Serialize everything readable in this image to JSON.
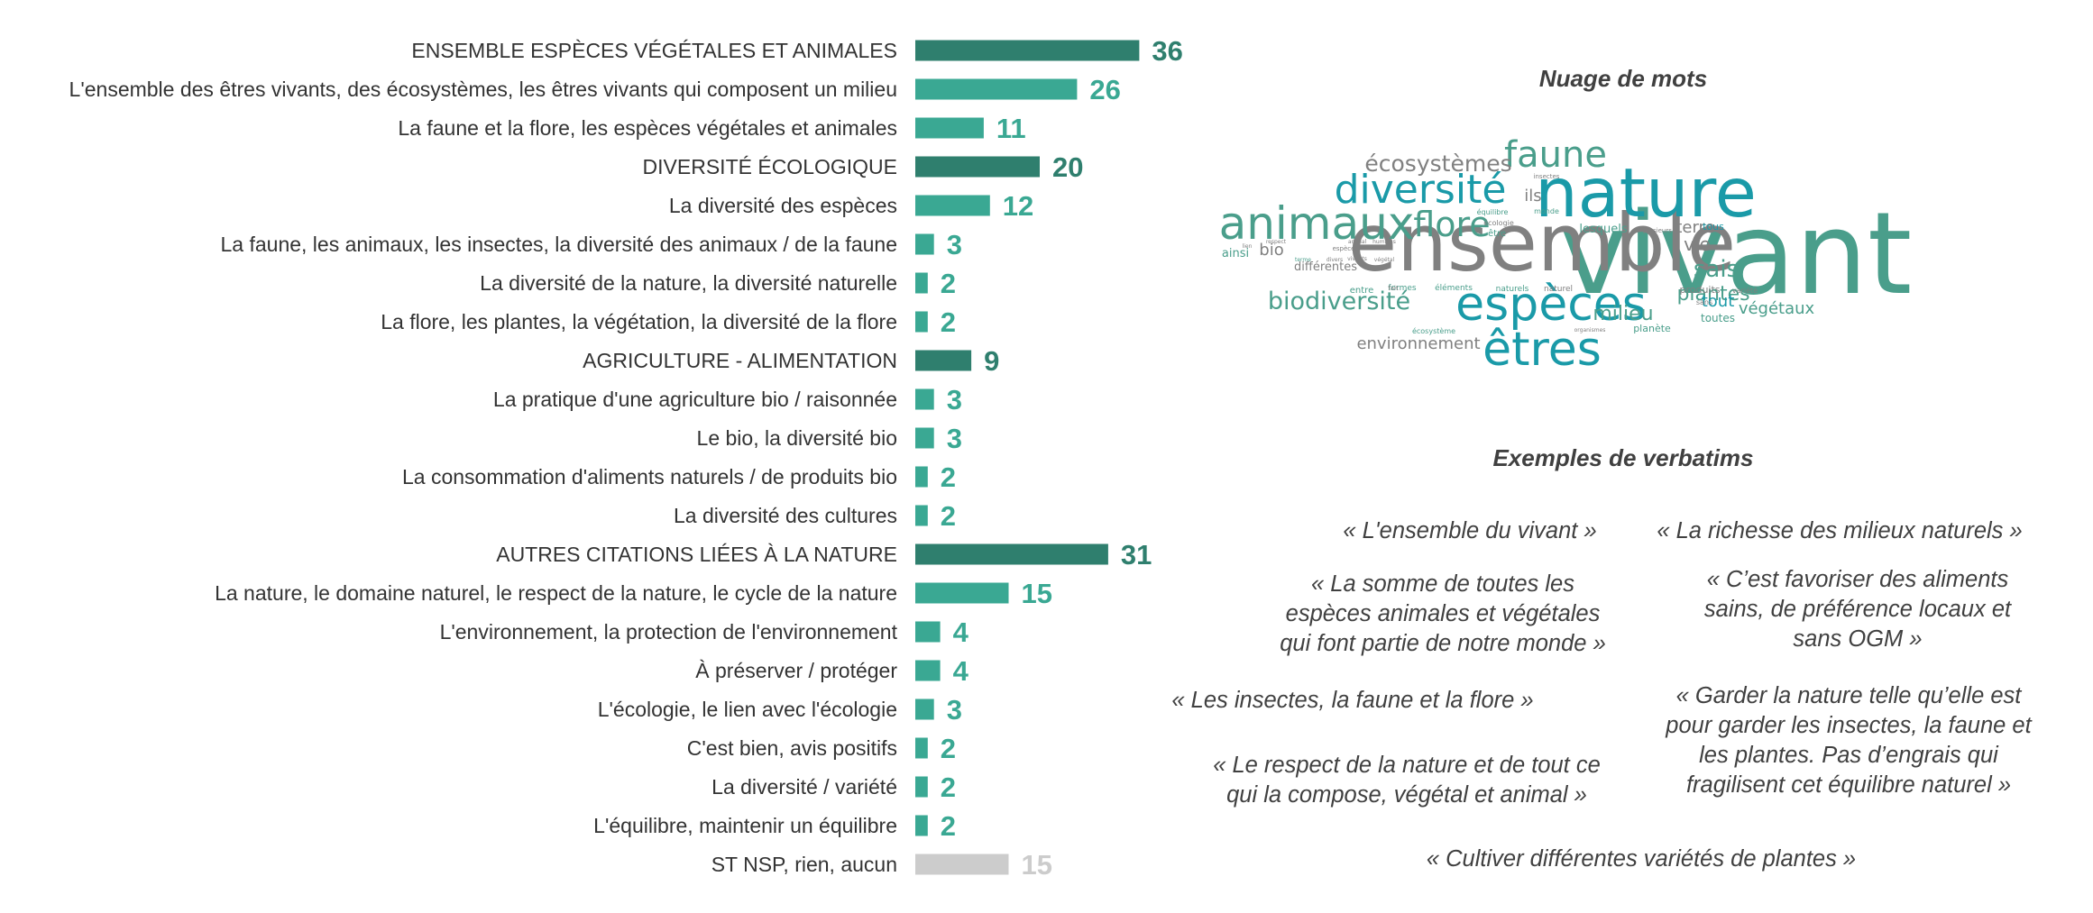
{
  "chart_data": {
    "type": "bar",
    "orientation": "horizontal",
    "categories": [
      "ENSEMBLE ESPÈCES VÉGÉTALES ET ANIMALES",
      "L'ensemble des êtres vivants, des écosystèmes, les êtres vivants qui composent un milieu",
      "La faune et la flore, les espèces végétales et animales",
      "DIVERSITÉ ÉCOLOGIQUE",
      "La diversité des espèces",
      "La faune, les animaux, les insectes, la diversité des animaux / de la faune",
      "La diversité de la nature, la diversité naturelle",
      "La flore, les plantes, la végétation, la diversité de la flore",
      "AGRICULTURE - ALIMENTATION",
      "La pratique d'une agriculture bio / raisonnée",
      "Le bio, la diversité bio",
      "La consommation d'aliments naturels / de produits bio",
      "La diversité des cultures",
      "AUTRES CITATIONS LIÉES À LA NATURE",
      "La nature, le domaine naturel, le respect de la nature, le cycle de la nature",
      "L'environnement, la protection de l'environnement",
      "À préserver / protéger",
      "L'écologie, le lien avec l'écologie",
      "C'est bien, avis positifs",
      "La diversité / variété",
      "L'équilibre, maintenir un équilibre",
      "ST NSP, rien, aucun"
    ],
    "values": [
      36,
      26,
      11,
      20,
      12,
      3,
      2,
      2,
      9,
      3,
      3,
      2,
      2,
      31,
      15,
      4,
      4,
      3,
      2,
      2,
      2,
      15
    ],
    "kinds": [
      "total",
      "item",
      "item",
      "total",
      "item",
      "item",
      "item",
      "item",
      "total",
      "item",
      "item",
      "item",
      "item",
      "total",
      "item",
      "item",
      "item",
      "item",
      "item",
      "item",
      "item",
      "nsp"
    ],
    "value_labels": [
      "36",
      "26",
      "11",
      "20",
      "12",
      "3",
      "2",
      "2",
      "9",
      "3",
      "3",
      "2",
      "2",
      "31",
      "15",
      "4",
      "4",
      "3",
      "2",
      "2",
      "2",
      "15"
    ],
    "colors": {
      "total": "#2f7f6e",
      "item": "#3aa893",
      "nsp": "#cccccc"
    },
    "xlim": [
      0,
      40
    ]
  },
  "wordcloud": {
    "title": "Nuage de mots",
    "words": [
      {
        "text": "vivant",
        "color": "#4a9e8b"
      },
      {
        "text": "ensemble",
        "color": "#808080"
      },
      {
        "text": "nature",
        "color": "#1a9aa8"
      },
      {
        "text": "animaux",
        "color": "#4a9e8b"
      },
      {
        "text": "espèces",
        "color": "#1a9aa8"
      },
      {
        "text": "êtres",
        "color": "#1a9aa8"
      },
      {
        "text": "diversité",
        "color": "#1a9aa8"
      },
      {
        "text": "faune",
        "color": "#4a9e8b"
      },
      {
        "text": "flore",
        "color": "#4a9e8b"
      },
      {
        "text": "écosystèmes",
        "color": "#808080"
      },
      {
        "text": "biodiversité",
        "color": "#4a9e8b"
      },
      {
        "text": "plantes",
        "color": "#4a9e8b"
      },
      {
        "text": "milieu",
        "color": "#4a9e8b"
      },
      {
        "text": "environnement",
        "color": "#808080"
      },
      {
        "text": "sais",
        "color": "#4a9e8b"
      },
      {
        "text": "vie",
        "color": "#808080"
      },
      {
        "text": "terre",
        "color": "#808080"
      },
      {
        "text": "tout",
        "color": "#1a9aa8"
      },
      {
        "text": "végétaux",
        "color": "#4a9e8b"
      },
      {
        "text": "ils",
        "color": "#808080"
      },
      {
        "text": "lesquels",
        "color": "#4a9e8b"
      },
      {
        "text": "différentes",
        "color": "#808080"
      },
      {
        "text": "toutes",
        "color": "#4a9e8b"
      },
      {
        "text": "ainsi",
        "color": "#4a9e8b"
      },
      {
        "text": "bio",
        "color": "#808080"
      },
      {
        "text": "planète",
        "color": "#4a9e8b"
      },
      {
        "text": "produits",
        "color": "#808080"
      },
      {
        "text": "tous",
        "color": "#1a9aa8"
      },
      {
        "text": "entre",
        "color": "#4a9e8b"
      },
      {
        "text": "formes",
        "color": "#4a9e8b"
      },
      {
        "text": "éléments",
        "color": "#4a9e8b"
      },
      {
        "text": "naturels",
        "color": "#4a9e8b"
      },
      {
        "text": "naturel",
        "color": "#808080"
      },
      {
        "text": "écosystème",
        "color": "#4a9e8b"
      },
      {
        "text": "être",
        "color": "#4a9e8b"
      },
      {
        "text": "monde",
        "color": "#4a9e8b"
      },
      {
        "text": "équilibre",
        "color": "#4a9e8b"
      },
      {
        "text": "écologie",
        "color": "#808080"
      },
      {
        "text": "insectes",
        "color": "#808080"
      },
      {
        "text": "variété",
        "color": "#808080"
      },
      {
        "text": "sans",
        "color": "#808080"
      },
      {
        "text": "plusieurs",
        "color": "#808080"
      },
      {
        "text": "espèce",
        "color": "#808080"
      },
      {
        "text": "fait",
        "color": "#808080"
      },
      {
        "text": "organismes",
        "color": "#808080"
      },
      {
        "text": "respect",
        "color": "#808080"
      },
      {
        "text": "lien",
        "color": "#808080"
      },
      {
        "text": "divers",
        "color": "#808080"
      },
      {
        "text": "terme",
        "color": "#4a9e8b"
      },
      {
        "text": "vivants",
        "color": "#808080"
      },
      {
        "text": "humains",
        "color": "#808080"
      },
      {
        "text": "végétal",
        "color": "#808080"
      },
      {
        "text": "animal",
        "color": "#808080"
      }
    ]
  },
  "verbatims": {
    "title": "Exemples de verbatims",
    "quotes": [
      "« L'ensemble du vivant »",
      "« La richesse des milieux naturels »",
      "« La somme de toutes les\nespèces animales et végétales\nqui font partie de notre monde »",
      "« C’est favoriser des aliments\nsains, de préférence locaux et\nsans OGM »",
      "« Les insectes, la faune et la flore »",
      "« Garder la nature telle qu’elle est\npour garder les insectes, la faune et\nles plantes. Pas d’engrais qui\nfragilisent cet équilibre naturel »",
      "« Le respect de la nature et de tout ce\nqui la compose, végétal et animal »",
      "« Cultiver différentes variétés de plantes »"
    ]
  }
}
